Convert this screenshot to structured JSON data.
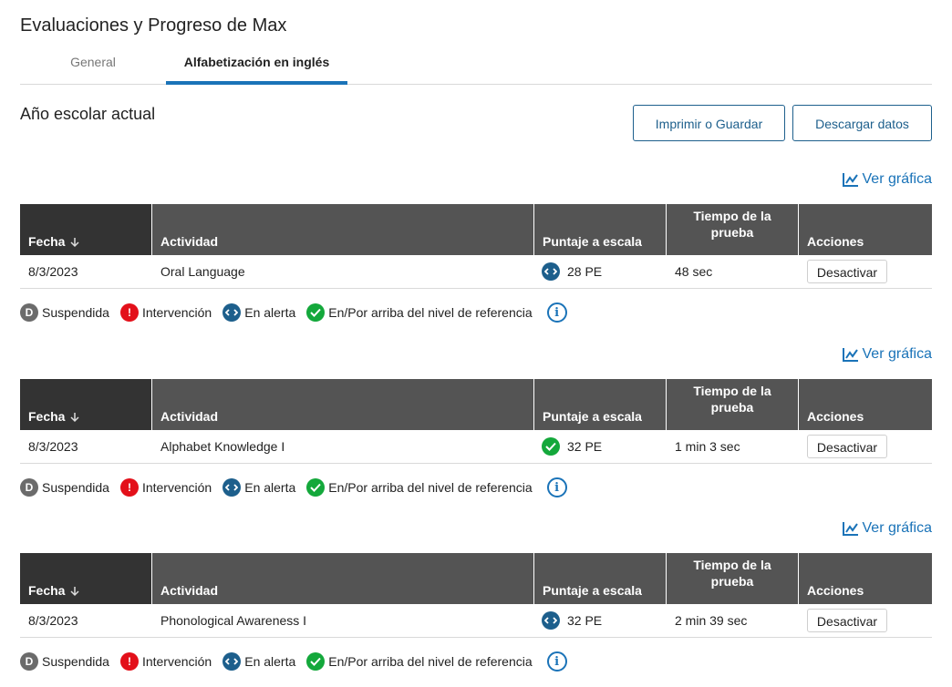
{
  "page": {
    "title": "Evaluaciones y Progreso de Max"
  },
  "tabs": [
    {
      "label": "General"
    },
    {
      "label": "Alfabetización en inglés"
    }
  ],
  "section": {
    "title": "Año escolar actual"
  },
  "toolbar": {
    "print_label": "Imprimir o Guardar",
    "download_label": "Descargar datos"
  },
  "chart_link_label": "Ver gráfica",
  "table_headers": {
    "date": "Fecha",
    "activity": "Actividad",
    "scale_score": "Puntaje a escala",
    "test_time_line1": "Tiempo de la",
    "test_time_line2": "prueba",
    "actions": "Acciones"
  },
  "assessments": [
    {
      "date": "8/3/2023",
      "activity": "Oral Language",
      "score": "28 PE",
      "status": "en-alerta",
      "time": "48 sec",
      "action": "Desactivar"
    },
    {
      "date": "8/3/2023",
      "activity": "Alphabet Knowledge I",
      "score": "32 PE",
      "status": "en-por-arriba",
      "time": "1 min 3 sec",
      "action": "Desactivar"
    },
    {
      "date": "8/3/2023",
      "activity": "Phonological Awareness I",
      "score": "32 PE",
      "status": "en-alerta",
      "time": "2 min 39 sec",
      "action": "Desactivar"
    }
  ],
  "legend": {
    "suspended_glyph": "D",
    "intervention_glyph": "!",
    "info_glyph": "i",
    "suspended": "Suspendida",
    "intervention": "Intervención",
    "alert": "En alerta",
    "above": "En/Por arriba del nivel de referencia"
  },
  "colors": {
    "accent": "#1a73b8",
    "header_bg": "#545454",
    "header_first_col_bg": "#333333",
    "alert_blue": "#1d5f8c",
    "intervention_red": "#e3101a",
    "above_green": "#14a83b",
    "suspended_grey": "#6b6b6b"
  }
}
